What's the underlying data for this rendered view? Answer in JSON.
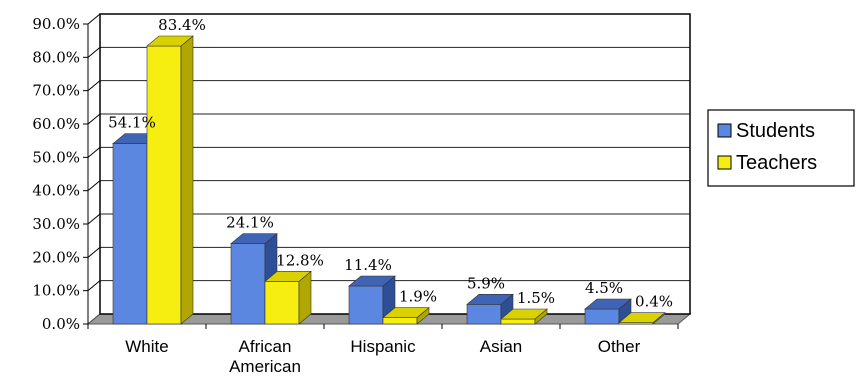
{
  "chart_data": {
    "type": "bar",
    "title": "",
    "xlabel": "",
    "ylabel": "",
    "ylim": [
      0,
      90
    ],
    "ytick_step": 10,
    "ytick_labels": [
      "0.0%",
      "10.0%",
      "20.0%",
      "30.0%",
      "40.0%",
      "50.0%",
      "60.0%",
      "70.0%",
      "80.0%",
      "90.0%"
    ],
    "categories": [
      [
        "White"
      ],
      [
        "African",
        "American"
      ],
      [
        "Hispanic"
      ],
      [
        "Asian"
      ],
      [
        "Other"
      ]
    ],
    "series": [
      {
        "name": "Students",
        "values": [
          54.1,
          24.1,
          11.4,
          5.9,
          4.5
        ],
        "labels": [
          "54.1%",
          "24.1%",
          "11.4%",
          "5.9%",
          "4.5%"
        ],
        "color": "#5B87E0",
        "top": "#3F63B5",
        "side": "#2E4E96"
      },
      {
        "name": "Teachers",
        "values": [
          83.4,
          12.8,
          1.9,
          1.5,
          0.4
        ],
        "labels": [
          "83.4%",
          "12.8%",
          "1.9%",
          "1.5%",
          "0.4%"
        ],
        "color": "#F5EE10",
        "top": "#D9D200",
        "side": "#B0A800"
      }
    ],
    "grid": true,
    "legend": "right",
    "three_d": true
  }
}
